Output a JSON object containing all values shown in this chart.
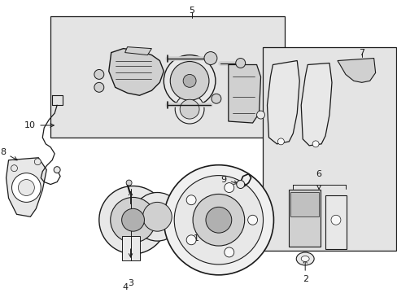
{
  "background_color": "#ffffff",
  "fig_width": 4.89,
  "fig_height": 3.6,
  "dpi": 100,
  "line_color": "#1a1a1a",
  "light_fill": "#e8e8e8",
  "mid_fill": "#d0d0d0",
  "dark_fill": "#b0b0b0",
  "plate_fill": "#e4e4e4"
}
